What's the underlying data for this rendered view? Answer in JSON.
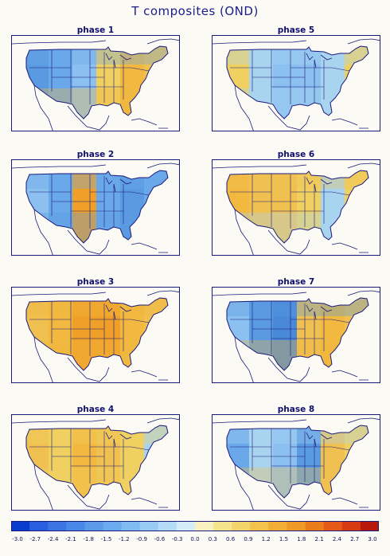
{
  "title": "T composites (OND)",
  "panels": [
    {
      "label": "phase 1",
      "scheme": [
        "#5a9ae0",
        "#6aa8ea",
        "#8cc0f0",
        "#f0d060",
        "#f2b840",
        "#f0c050"
      ]
    },
    {
      "label": "phase 2",
      "scheme": [
        "#8cc0f0",
        "#6aa8ea",
        "#f0a028",
        "#6aa8ea",
        "#5a9ae0",
        "#6aa8ea"
      ]
    },
    {
      "label": "phase 3",
      "scheme": [
        "#f0c050",
        "#f2b840",
        "#f0a028",
        "#f0a028",
        "#f2b840",
        "#f0c050"
      ]
    },
    {
      "label": "phase 4",
      "scheme": [
        "#f0c050",
        "#f0d060",
        "#f2b840",
        "#f0c050",
        "#f0d060",
        "#a8d4f0"
      ]
    },
    {
      "label": "phase 5",
      "scheme": [
        "#f0d060",
        "#a8d4f0",
        "#8cc0f0",
        "#8cc0f0",
        "#a8d4f0",
        "#f0d060"
      ]
    },
    {
      "label": "phase 6",
      "scheme": [
        "#f2b840",
        "#f0c050",
        "#f0c050",
        "#f0d060",
        "#a8d4f0",
        "#f0d060"
      ]
    },
    {
      "label": "phase 7",
      "scheme": [
        "#8cc0f0",
        "#5a9ae0",
        "#4a88d8",
        "#f0c050",
        "#f2b840",
        "#f0c050"
      ]
    },
    {
      "label": "phase 8",
      "scheme": [
        "#6aa8ea",
        "#a8d4f0",
        "#8cc0f0",
        "#5a9ae0",
        "#f0c050",
        "#f0d060"
      ]
    }
  ],
  "colorbar": {
    "ticks": [
      "-3.0",
      "-2.7",
      "-2.4",
      "-2.1",
      "-1.8",
      "-1.5",
      "-1.2",
      "-0.9",
      "-0.6",
      "-0.3",
      "0.0",
      "0.3",
      "0.6",
      "0.9",
      "1.2",
      "1.5",
      "1.8",
      "2.1",
      "2.4",
      "2.7",
      "3.0"
    ],
    "colors": [
      "#0a3cd0",
      "#2a5ee0",
      "#3c74e4",
      "#4a88e8",
      "#5a9ae8",
      "#6aaaee",
      "#80bcf2",
      "#98ccf4",
      "#b4dcf6",
      "#d4ecf8",
      "#f8f0c0",
      "#f6e48c",
      "#f4d46a",
      "#f2c24c",
      "#f0ae36",
      "#ee9a28",
      "#ea7c1c",
      "#e45a16",
      "#d83a12",
      "#b8180c"
    ]
  }
}
